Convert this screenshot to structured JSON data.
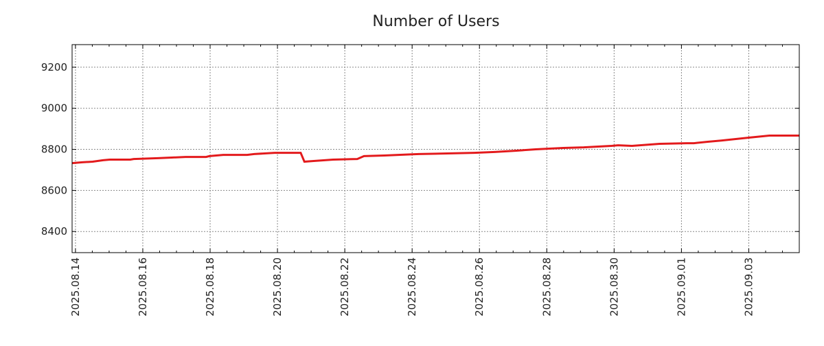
{
  "chart_data": {
    "type": "line",
    "title": "Number of Users",
    "xlabel": "",
    "ylabel": "",
    "x_unit": "days since 2025.08.14",
    "xlim": [
      -0.1,
      21.5
    ],
    "ylim": [
      8297,
      9310
    ],
    "yticks": [
      8400,
      8600,
      8800,
      9000,
      9200
    ],
    "xticks": [
      {
        "v": 0,
        "label": "2025.08.14"
      },
      {
        "v": 2,
        "label": "2025.08.16"
      },
      {
        "v": 4,
        "label": "2025.08.18"
      },
      {
        "v": 6,
        "label": "2025.08.20"
      },
      {
        "v": 8,
        "label": "2025.08.22"
      },
      {
        "v": 10,
        "label": "2025.08.24"
      },
      {
        "v": 12,
        "label": "2025.08.26"
      },
      {
        "v": 14,
        "label": "2025.08.28"
      },
      {
        "v": 16,
        "label": "2025.08.30"
      },
      {
        "v": 18,
        "label": "2025.09.01"
      },
      {
        "v": 20,
        "label": "2025.09.03"
      }
    ],
    "grid": true,
    "color": "#e31a1c",
    "series": [
      {
        "name": "Users",
        "x": [
          -0.1,
          0.2,
          0.51,
          0.82,
          1.02,
          1.63,
          1.73,
          2.45,
          2.86,
          3.27,
          3.88,
          3.98,
          4.39,
          5.1,
          5.31,
          5.92,
          6.53,
          6.69,
          6.8,
          7.04,
          7.65,
          8.37,
          8.57,
          9.18,
          9.59,
          10.2,
          11.84,
          12.45,
          13.06,
          13.67,
          14.49,
          15.1,
          15.92,
          16.12,
          16.53,
          17.35,
          18.16,
          18.37,
          18.78,
          19.18,
          19.59,
          20.0,
          20.61,
          21.5
        ],
        "values": [
          8733,
          8737,
          8740,
          8747,
          8750,
          8750,
          8753,
          8757,
          8760,
          8763,
          8763,
          8767,
          8773,
          8773,
          8777,
          8783,
          8783,
          8783,
          8740,
          8743,
          8750,
          8753,
          8767,
          8770,
          8773,
          8777,
          8783,
          8787,
          8793,
          8800,
          8807,
          8810,
          8817,
          8820,
          8817,
          8827,
          8830,
          8830,
          8837,
          8843,
          8850,
          8857,
          8867,
          8867
        ]
      }
    ]
  }
}
